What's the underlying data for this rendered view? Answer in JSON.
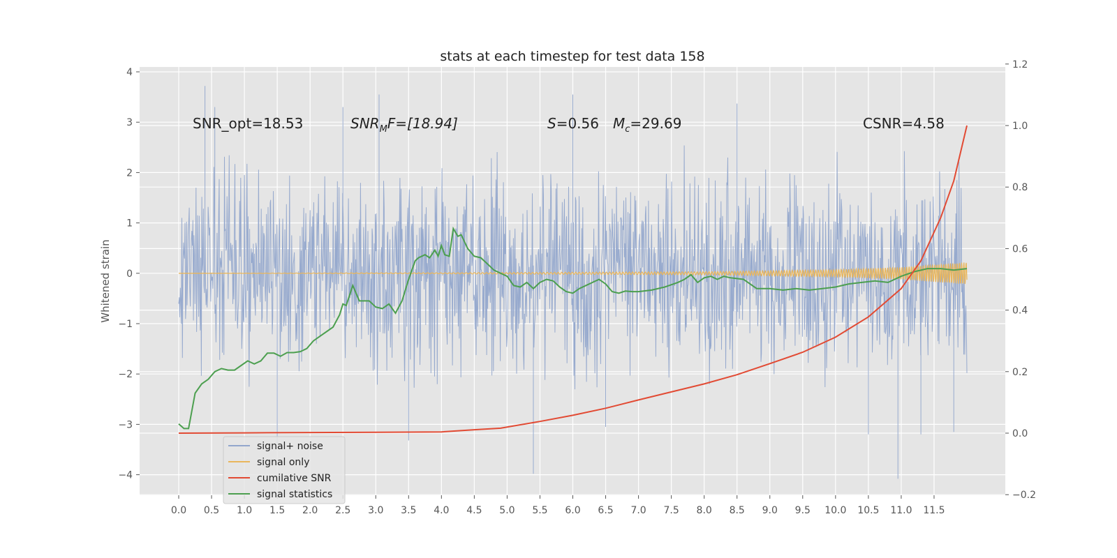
{
  "chart_data": {
    "type": "line",
    "title": "stats at each timestep for test data 158",
    "ylabel": "Whitened strain",
    "xlabel": "",
    "xlim": [
      -0.6,
      12.6
    ],
    "ylim_left": [
      -4.45,
      4.1
    ],
    "ylim_right": [
      -0.2,
      1.2
    ],
    "x_ticks": [
      "0.0",
      "0.5",
      "1.0",
      "1.5",
      "2.0",
      "2.5",
      "3.0",
      "3.5",
      "4.0",
      "4.5",
      "5.0",
      "5.5",
      "6.0",
      "6.5",
      "7.0",
      "7.5",
      "8.0",
      "8.5",
      "9.0",
      "9.5",
      "10.0",
      "10.5",
      "11.0",
      "11.5"
    ],
    "y_ticks_left": [
      "4",
      "3",
      "2",
      "1",
      "0",
      "−1",
      "−2",
      "−3",
      "−4"
    ],
    "y_ticks_right": [
      "1.2",
      "1.0",
      "0.8",
      "0.6",
      "0.4",
      "0.2",
      "0.0",
      "−0.2"
    ],
    "grid": true,
    "legend_position": "bottom-left",
    "annotations": {
      "snr_opt": "SNR_opt=18.53",
      "snr_mf_base": "SNR",
      "snr_mf_sub": "M",
      "snr_mf_rest": "F=[18.94]",
      "s_sym": "S",
      "s_val": "=0.56",
      "mc_sym": "M",
      "mc_sub": "c",
      "mc_val": "=29.69",
      "csnr": "CSNR=4.58"
    },
    "series": [
      {
        "name": "signal+ noise",
        "color": "#92a6cc",
        "axis": "left",
        "note_envelope": [
          [
            0.0,
            2.5,
            -2.5
          ],
          [
            0.5,
            2.3,
            -2.4
          ],
          [
            1.0,
            2.6,
            -2.6
          ],
          [
            1.5,
            2.5,
            -2.5
          ],
          [
            2.0,
            2.6,
            -2.7
          ],
          [
            2.5,
            2.4,
            -2.6
          ],
          [
            3.0,
            2.7,
            -2.5
          ],
          [
            3.5,
            2.5,
            -2.6
          ],
          [
            4.0,
            2.6,
            -2.5
          ],
          [
            4.5,
            2.5,
            -2.6
          ],
          [
            5.0,
            2.4,
            -2.5
          ],
          [
            5.5,
            2.6,
            -2.7
          ],
          [
            6.0,
            2.5,
            -2.6
          ],
          [
            6.5,
            2.6,
            -2.5
          ],
          [
            7.0,
            2.4,
            -2.6
          ],
          [
            7.5,
            2.5,
            -2.5
          ],
          [
            8.0,
            2.6,
            -2.6
          ],
          [
            8.5,
            2.5,
            -2.5
          ],
          [
            9.0,
            2.4,
            -2.6
          ],
          [
            9.5,
            2.6,
            -2.5
          ],
          [
            10.0,
            2.5,
            -2.6
          ],
          [
            10.5,
            2.4,
            -2.5
          ],
          [
            11.0,
            2.6,
            -2.6
          ],
          [
            11.5,
            2.5,
            -2.5
          ],
          [
            12.0,
            2.5,
            -2.5
          ]
        ],
        "spikes": [
          [
            0.4,
            3.72
          ],
          [
            0.55,
            3.3
          ],
          [
            1.5,
            -3.38
          ],
          [
            2.5,
            3.3
          ],
          [
            3.05,
            3.55
          ],
          [
            3.5,
            -3.32
          ],
          [
            5.4,
            -3.98
          ],
          [
            6.0,
            3.55
          ],
          [
            6.5,
            -3.05
          ],
          [
            8.5,
            3.37
          ],
          [
            10.5,
            -3.2
          ],
          [
            10.95,
            -4.08
          ],
          [
            11.3,
            -3.2
          ],
          [
            11.8,
            -3.15
          ]
        ]
      },
      {
        "name": "signal only",
        "color": "#e9b65c",
        "axis": "left",
        "amplitude_envelope": [
          [
            0.0,
            0.0
          ],
          [
            4.0,
            0.01
          ],
          [
            8.0,
            0.03
          ],
          [
            10.0,
            0.07
          ],
          [
            11.0,
            0.12
          ],
          [
            12.0,
            0.22
          ]
        ]
      },
      {
        "name": "cumilative SNR",
        "color": "#e24a33",
        "axis": "right",
        "x": [
          0.0,
          1.0,
          2.0,
          3.0,
          4.0,
          4.5,
          4.9,
          5.5,
          6.0,
          6.5,
          7.0,
          7.5,
          8.0,
          8.5,
          9.0,
          9.5,
          10.0,
          10.5,
          11.0,
          11.3,
          11.6,
          11.8,
          12.0
        ],
        "y": [
          0.0,
          0.001,
          0.002,
          0.003,
          0.004,
          0.011,
          0.016,
          0.038,
          0.058,
          0.081,
          0.108,
          0.134,
          0.16,
          0.19,
          0.226,
          0.263,
          0.312,
          0.378,
          0.47,
          0.56,
          0.7,
          0.82,
          1.0
        ]
      },
      {
        "name": "signal statistics",
        "color": "#4c9f4f",
        "axis": "right",
        "x": [
          0.0,
          0.08,
          0.15,
          0.25,
          0.35,
          0.45,
          0.55,
          0.65,
          0.75,
          0.85,
          0.95,
          1.05,
          1.15,
          1.25,
          1.35,
          1.45,
          1.55,
          1.65,
          1.75,
          1.85,
          1.95,
          2.05,
          2.15,
          2.25,
          2.35,
          2.45,
          2.5,
          2.55,
          2.65,
          2.75,
          2.9,
          3.0,
          3.1,
          3.2,
          3.3,
          3.4,
          3.5,
          3.6,
          3.65,
          3.75,
          3.82,
          3.9,
          3.95,
          4.0,
          4.05,
          4.12,
          4.18,
          4.25,
          4.3,
          4.4,
          4.5,
          4.6,
          4.7,
          4.8,
          4.9,
          5.0,
          5.1,
          5.2,
          5.3,
          5.4,
          5.5,
          5.6,
          5.7,
          5.8,
          5.9,
          6.0,
          6.1,
          6.2,
          6.3,
          6.4,
          6.5,
          6.6,
          6.7,
          6.8,
          6.9,
          7.0,
          7.2,
          7.4,
          7.6,
          7.7,
          7.8,
          7.9,
          8.0,
          8.1,
          8.2,
          8.3,
          8.4,
          8.6,
          8.8,
          9.0,
          9.2,
          9.4,
          9.6,
          9.8,
          10.0,
          10.2,
          10.4,
          10.6,
          10.8,
          11.0,
          11.2,
          11.4,
          11.6,
          11.8,
          12.0
        ],
        "y": [
          0.03,
          0.015,
          0.015,
          0.13,
          0.16,
          0.175,
          0.2,
          0.21,
          0.205,
          0.205,
          0.22,
          0.235,
          0.225,
          0.235,
          0.26,
          0.26,
          0.25,
          0.262,
          0.262,
          0.265,
          0.275,
          0.3,
          0.315,
          0.33,
          0.345,
          0.385,
          0.42,
          0.415,
          0.48,
          0.43,
          0.43,
          0.41,
          0.405,
          0.42,
          0.39,
          0.43,
          0.5,
          0.56,
          0.57,
          0.58,
          0.57,
          0.595,
          0.575,
          0.61,
          0.58,
          0.575,
          0.665,
          0.64,
          0.645,
          0.6,
          0.575,
          0.57,
          0.55,
          0.53,
          0.52,
          0.51,
          0.48,
          0.475,
          0.49,
          0.47,
          0.49,
          0.5,
          0.495,
          0.475,
          0.46,
          0.455,
          0.47,
          0.48,
          0.49,
          0.5,
          0.485,
          0.46,
          0.455,
          0.462,
          0.46,
          0.46,
          0.465,
          0.475,
          0.49,
          0.5,
          0.515,
          0.49,
          0.505,
          0.51,
          0.5,
          0.51,
          0.505,
          0.5,
          0.47,
          0.47,
          0.465,
          0.47,
          0.465,
          0.47,
          0.475,
          0.485,
          0.49,
          0.495,
          0.49,
          0.51,
          0.525,
          0.535,
          0.535,
          0.53,
          0.535
        ]
      }
    ]
  }
}
